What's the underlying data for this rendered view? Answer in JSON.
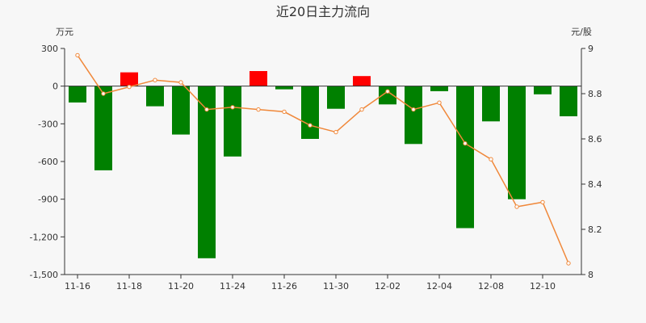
{
  "chart_data": {
    "type": "bar+line",
    "title": "近20日主力流向",
    "left_unit": "万元",
    "right_unit": "元/股",
    "colors": {
      "positive": "#ff0000",
      "negative": "#008000",
      "line": "#f0883a"
    },
    "left_axis": {
      "min": -1500,
      "max": 300,
      "ticks": [
        300,
        0,
        -300,
        -600,
        -900,
        -1200,
        -1500
      ]
    },
    "right_axis": {
      "min": 8,
      "max": 9,
      "ticks": [
        9,
        8.8,
        8.6,
        8.4,
        8.2,
        8
      ]
    },
    "x_ticks": [
      {
        "label": "11-16",
        "index": 0
      },
      {
        "label": "11-18",
        "index": 2
      },
      {
        "label": "11-20",
        "index": 4
      },
      {
        "label": "11-24",
        "index": 6
      },
      {
        "label": "11-26",
        "index": 8
      },
      {
        "label": "11-30",
        "index": 10
      },
      {
        "label": "12-02",
        "index": 12
      },
      {
        "label": "12-04",
        "index": 14
      },
      {
        "label": "12-08",
        "index": 16
      },
      {
        "label": "12-10",
        "index": 18
      }
    ],
    "bars": [
      -130,
      -670,
      110,
      -160,
      -385,
      -1370,
      -560,
      120,
      -25,
      -420,
      -180,
      80,
      -145,
      -460,
      -40,
      -1130,
      -280,
      -900,
      -65,
      -240
    ],
    "price": [
      8.97,
      8.8,
      8.83,
      8.86,
      8.85,
      8.73,
      8.74,
      8.73,
      8.72,
      8.66,
      8.63,
      8.73,
      8.81,
      8.73,
      8.76,
      8.58,
      8.51,
      8.3,
      8.32,
      8.05
    ]
  }
}
